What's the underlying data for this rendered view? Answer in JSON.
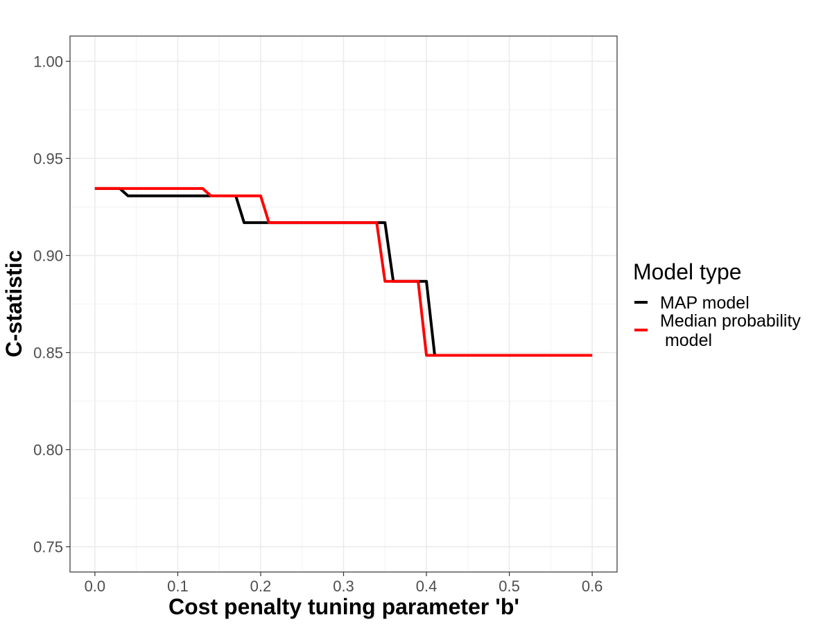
{
  "chart_data": {
    "type": "line",
    "title": "",
    "xlabel": "Cost penalty tuning parameter 'b'",
    "ylabel": "C-statistic",
    "xlim": [
      -0.03,
      0.63
    ],
    "ylim": [
      0.737,
      1.013
    ],
    "x_ticks": [
      0.0,
      0.1,
      0.2,
      0.3,
      0.4,
      0.5,
      0.6
    ],
    "x_tick_labels": [
      "0.0",
      "0.1",
      "0.2",
      "0.3",
      "0.4",
      "0.5",
      "0.6"
    ],
    "y_ticks": [
      0.75,
      0.8,
      0.85,
      0.9,
      0.95,
      1.0
    ],
    "y_tick_labels": [
      "0.75",
      "0.80",
      "0.85",
      "0.90",
      "0.95",
      "1.00"
    ],
    "grid": true,
    "legend": {
      "title": "Model type",
      "position": "right",
      "entries": [
        "MAP model",
        "Median probability",
        " model"
      ]
    },
    "series": [
      {
        "name": "MAP model",
        "color": "#000000",
        "x": [
          0.0,
          0.01,
          0.02,
          0.03,
          0.04,
          0.05,
          0.06,
          0.07,
          0.08,
          0.09,
          0.1,
          0.11,
          0.12,
          0.13,
          0.14,
          0.15,
          0.16,
          0.17,
          0.18,
          0.19,
          0.2,
          0.21,
          0.22,
          0.23,
          0.24,
          0.25,
          0.26,
          0.27,
          0.28,
          0.29,
          0.3,
          0.31,
          0.32,
          0.33,
          0.34,
          0.35,
          0.36,
          0.37,
          0.38,
          0.39,
          0.4,
          0.41,
          0.42,
          0.43,
          0.44,
          0.45,
          0.46,
          0.47,
          0.48,
          0.49,
          0.5,
          0.51,
          0.52,
          0.53,
          0.54,
          0.55,
          0.56,
          0.57,
          0.58,
          0.59,
          0.6
        ],
        "values": [
          0.9345,
          0.9345,
          0.9345,
          0.9345,
          0.9307,
          0.9307,
          0.9307,
          0.9307,
          0.9307,
          0.9307,
          0.9307,
          0.9307,
          0.9307,
          0.9307,
          0.9307,
          0.9307,
          0.9307,
          0.9307,
          0.9169,
          0.9169,
          0.9169,
          0.9169,
          0.9169,
          0.9169,
          0.9169,
          0.9169,
          0.9169,
          0.9169,
          0.9169,
          0.9169,
          0.9169,
          0.9169,
          0.9169,
          0.9169,
          0.9169,
          0.9169,
          0.8867,
          0.8867,
          0.8867,
          0.8867,
          0.8867,
          0.8486,
          0.8486,
          0.8486,
          0.8486,
          0.8486,
          0.8486,
          0.8486,
          0.8486,
          0.8486,
          0.8486,
          0.8486,
          0.8486,
          0.8486,
          0.8486,
          0.8486,
          0.8486,
          0.8486,
          0.8486,
          0.8486,
          0.8486
        ]
      },
      {
        "name": "Median probability model",
        "color": "#ff0000",
        "x": [
          0.0,
          0.01,
          0.02,
          0.03,
          0.04,
          0.05,
          0.06,
          0.07,
          0.08,
          0.09,
          0.1,
          0.11,
          0.12,
          0.13,
          0.14,
          0.15,
          0.16,
          0.17,
          0.18,
          0.19,
          0.2,
          0.21,
          0.22,
          0.23,
          0.24,
          0.25,
          0.26,
          0.27,
          0.28,
          0.29,
          0.3,
          0.31,
          0.32,
          0.33,
          0.34,
          0.35,
          0.36,
          0.37,
          0.38,
          0.39,
          0.4,
          0.41,
          0.42,
          0.43,
          0.44,
          0.45,
          0.46,
          0.47,
          0.48,
          0.49,
          0.5,
          0.51,
          0.52,
          0.53,
          0.54,
          0.55,
          0.56,
          0.57,
          0.58,
          0.59,
          0.6
        ],
        "values": [
          0.9345,
          0.9345,
          0.9345,
          0.9345,
          0.9345,
          0.9345,
          0.9345,
          0.9345,
          0.9345,
          0.9345,
          0.9345,
          0.9345,
          0.9345,
          0.9345,
          0.9307,
          0.9307,
          0.9307,
          0.9307,
          0.9307,
          0.9307,
          0.9307,
          0.9169,
          0.9169,
          0.9169,
          0.9169,
          0.9169,
          0.9169,
          0.9169,
          0.9169,
          0.9169,
          0.9169,
          0.9169,
          0.9169,
          0.9169,
          0.9169,
          0.8867,
          0.8867,
          0.8867,
          0.8867,
          0.8867,
          0.8486,
          0.8486,
          0.8486,
          0.8486,
          0.8486,
          0.8486,
          0.8486,
          0.8486,
          0.8486,
          0.8486,
          0.8486,
          0.8486,
          0.8486,
          0.8486,
          0.8486,
          0.8486,
          0.8486,
          0.8486,
          0.8486,
          0.8486,
          0.8486
        ]
      }
    ]
  }
}
